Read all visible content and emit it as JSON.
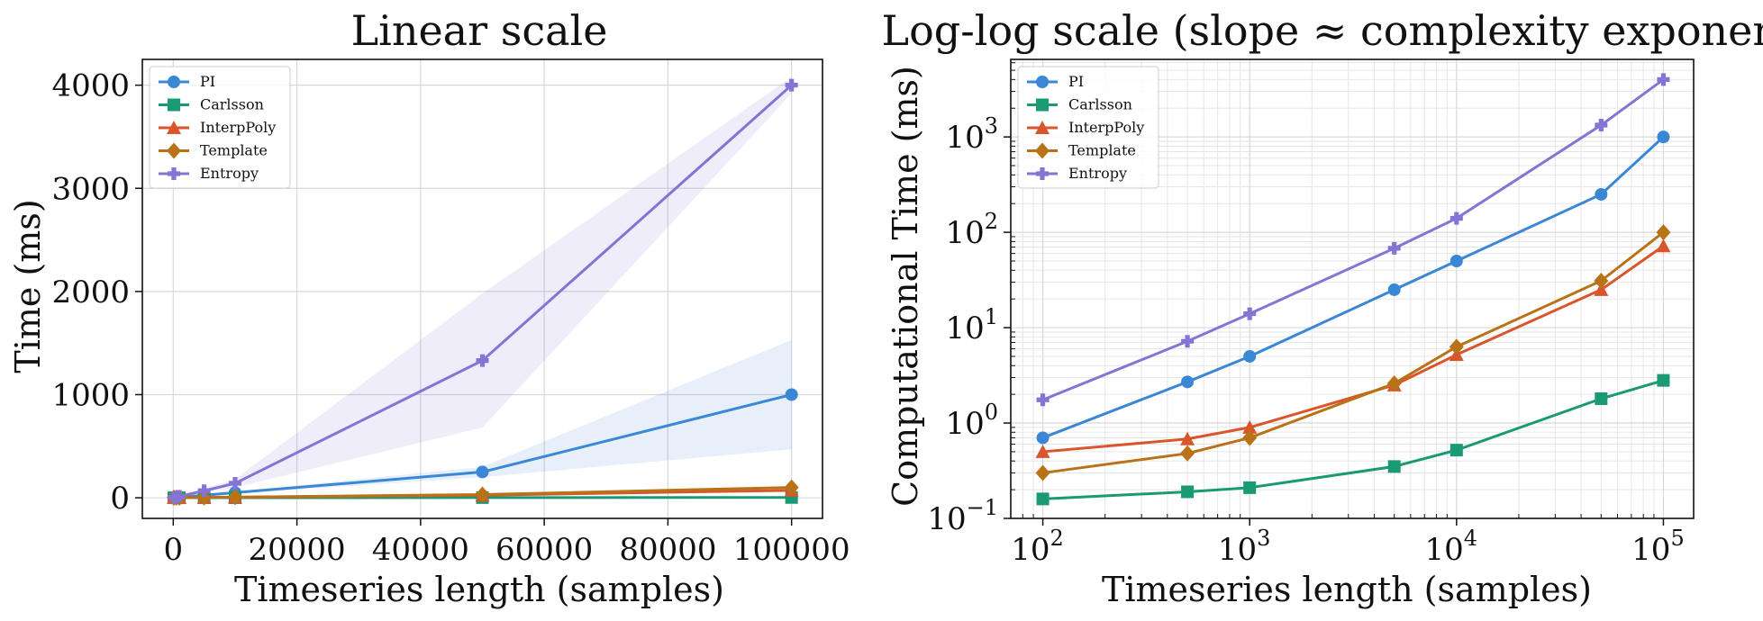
{
  "figure": {
    "colors": {
      "PI": "#3a87d6",
      "Carlsson": "#1a9a73",
      "InterpPoly": "#d9562d",
      "Template": "#ba7218",
      "Entropy": "#8474d4"
    }
  },
  "chart_data": [
    {
      "type": "line",
      "title": "Linear scale",
      "xlabel": "Timeseries length (samples)",
      "ylabel": "Time (ms)",
      "x": [
        100,
        500,
        1000,
        5000,
        10000,
        50000,
        100000
      ],
      "xlim": [
        -5000,
        105000
      ],
      "ylim": [
        -200,
        4250
      ],
      "xticks": [
        0,
        20000,
        40000,
        60000,
        80000,
        100000
      ],
      "xtick_labels": [
        "0",
        "20000",
        "40000",
        "60000",
        "80000",
        "100000"
      ],
      "yticks": [
        0,
        1000,
        2000,
        3000,
        4000
      ],
      "ytick_labels": [
        "0",
        "1000",
        "2000",
        "3000",
        "4000"
      ],
      "grid": true,
      "legend": "top-left",
      "series": [
        {
          "name": "PI",
          "marker": "circle",
          "values": [
            0.7,
            2.7,
            5,
            25,
            50,
            250,
            1000
          ],
          "band_lower": [
            0.5,
            2,
            4,
            20,
            40,
            200,
            470
          ],
          "band_upper": [
            0.9,
            3.5,
            6,
            30,
            60,
            300,
            1530
          ]
        },
        {
          "name": "Carlsson",
          "marker": "square",
          "values": [
            0.16,
            0.19,
            0.21,
            0.35,
            0.52,
            1.8,
            2.8
          ]
        },
        {
          "name": "InterpPoly",
          "marker": "triangle",
          "values": [
            0.5,
            0.68,
            0.9,
            2.5,
            5.2,
            25,
            72
          ]
        },
        {
          "name": "Template",
          "marker": "diamond",
          "values": [
            0.3,
            0.48,
            0.7,
            2.6,
            6.3,
            31,
            100
          ]
        },
        {
          "name": "Entropy",
          "marker": "plus",
          "values": [
            1.75,
            7.2,
            14,
            68,
            140,
            1330,
            4000
          ],
          "band_lower": [
            1.2,
            5,
            10,
            50,
            100,
            680,
            3920
          ],
          "band_upper": [
            2.3,
            9.5,
            18,
            90,
            180,
            1980,
            4080
          ]
        }
      ]
    },
    {
      "type": "line",
      "title": "Log-log scale (slope ≈ complexity exponent)",
      "xlabel": "Timeseries length (samples)",
      "ylabel": "Computational Time (ms)",
      "xscale": "log",
      "yscale": "log",
      "x": [
        100,
        500,
        1000,
        5000,
        10000,
        50000,
        100000
      ],
      "xlim": [
        70,
        140000
      ],
      "ylim": [
        0.1,
        6500
      ],
      "xticks": [
        100,
        1000,
        10000,
        100000
      ],
      "xtick_labels": [
        "10",
        "10",
        "10",
        "10"
      ],
      "xtick_exponents": [
        "2",
        "3",
        "4",
        "5"
      ],
      "yticks": [
        0.1,
        1,
        10,
        100,
        1000
      ],
      "ytick_labels": [
        "10",
        "10",
        "10",
        "10",
        "10"
      ],
      "ytick_exponents": [
        "−1",
        "0",
        "1",
        "2",
        "3"
      ],
      "grid": true,
      "legend": "top-left",
      "series": [
        {
          "name": "PI",
          "marker": "circle",
          "values": [
            0.7,
            2.7,
            5,
            25,
            50,
            250,
            1000
          ]
        },
        {
          "name": "Carlsson",
          "marker": "square",
          "values": [
            0.16,
            0.19,
            0.21,
            0.35,
            0.52,
            1.8,
            2.8
          ]
        },
        {
          "name": "InterpPoly",
          "marker": "triangle",
          "values": [
            0.5,
            0.68,
            0.9,
            2.5,
            5.2,
            25,
            72
          ]
        },
        {
          "name": "Template",
          "marker": "diamond",
          "values": [
            0.3,
            0.48,
            0.7,
            2.6,
            6.3,
            31,
            100
          ]
        },
        {
          "name": "Entropy",
          "marker": "plus",
          "values": [
            1.75,
            7.2,
            14,
            68,
            140,
            1330,
            4000
          ]
        }
      ]
    }
  ]
}
